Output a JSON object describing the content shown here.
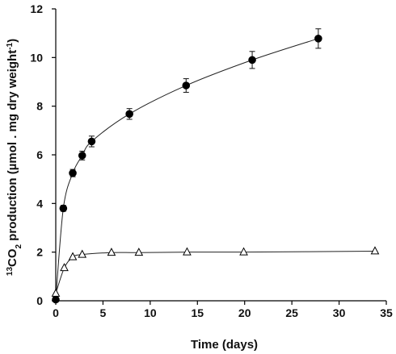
{
  "chart_data": {
    "type": "line",
    "xlabel": "Time (days)",
    "ylabel": {
      "sup1": "13",
      "main1": "CO",
      "sub": "2",
      "main2": " production (µmol . mg dry weight",
      "sup2": "-1",
      "main3": ")"
    },
    "xlim": [
      0,
      35
    ],
    "ylim": [
      0,
      12
    ],
    "xticks": [
      0,
      5,
      10,
      15,
      20,
      25,
      30,
      35
    ],
    "yticks": [
      0,
      2,
      4,
      6,
      8,
      10,
      12
    ],
    "grid": false,
    "series": [
      {
        "marker": "filled-circle",
        "color": "#000000",
        "points": [
          {
            "x": 0,
            "y": 0.05,
            "err": 0
          },
          {
            "x": 0.8,
            "y": 3.8,
            "err": 0.12
          },
          {
            "x": 1.8,
            "y": 5.25,
            "err": 0.15
          },
          {
            "x": 2.8,
            "y": 5.97,
            "err": 0.18
          },
          {
            "x": 3.8,
            "y": 6.55,
            "err": 0.22
          },
          {
            "x": 7.8,
            "y": 7.68,
            "err": 0.22
          },
          {
            "x": 13.8,
            "y": 8.85,
            "err": 0.28
          },
          {
            "x": 20.8,
            "y": 9.9,
            "err": 0.35
          },
          {
            "x": 27.8,
            "y": 10.78,
            "err": 0.4
          }
        ]
      },
      {
        "marker": "open-triangle",
        "color": "#000000",
        "points": [
          {
            "x": 0,
            "y": 0.3
          },
          {
            "x": 0.9,
            "y": 1.35
          },
          {
            "x": 1.8,
            "y": 1.8
          },
          {
            "x": 2.8,
            "y": 1.9
          },
          {
            "x": 5.9,
            "y": 1.98
          },
          {
            "x": 8.8,
            "y": 1.98
          },
          {
            "x": 13.9,
            "y": 2.0
          },
          {
            "x": 19.9,
            "y": 2.0
          },
          {
            "x": 33.8,
            "y": 2.04
          }
        ]
      }
    ]
  }
}
